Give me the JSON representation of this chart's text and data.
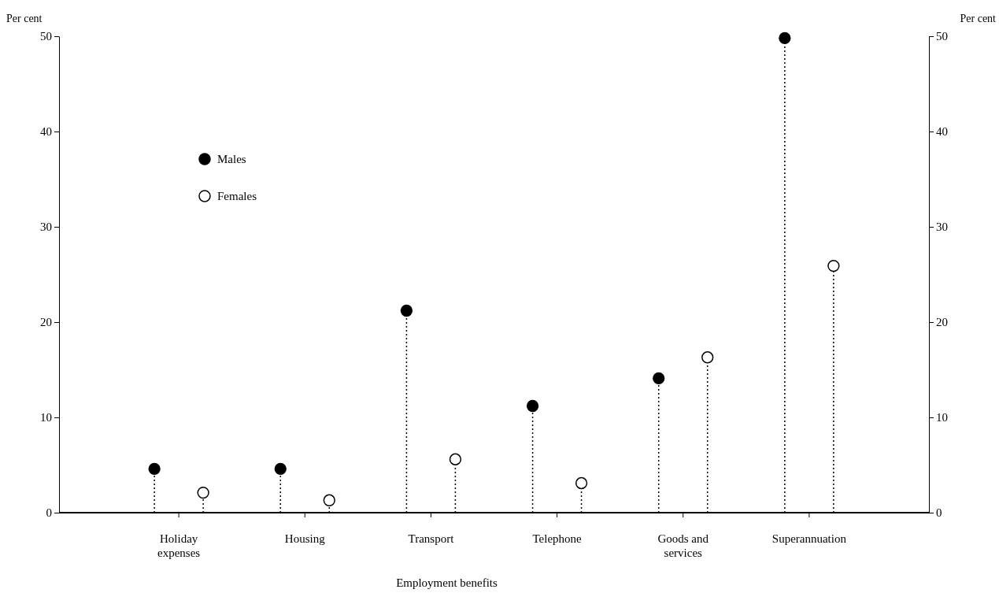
{
  "chart_data": {
    "type": "lollipop",
    "xlabel": "Employment benefits",
    "ylabel": "Per cent",
    "y2label": "Per cent",
    "categories": [
      "Holiday expenses",
      "Housing",
      "Transport",
      "Telephone",
      "Goods and services",
      "Superannuation"
    ],
    "series": [
      {
        "name": "Males",
        "color": "#000000",
        "values": [
          4.6,
          4.6,
          21.2,
          11.2,
          14.1,
          49.8
        ]
      },
      {
        "name": "Females",
        "color": "#ffffff",
        "values": [
          2.1,
          1.3,
          5.6,
          3.1,
          16.3,
          25.9
        ]
      }
    ],
    "ylim": [
      0,
      50
    ],
    "yticks": [
      0,
      10,
      20,
      30,
      40,
      50
    ],
    "y2lim": [
      0,
      50
    ],
    "y2ticks": [
      0,
      10,
      20,
      30,
      40,
      50
    ],
    "grid": false,
    "legend": "top left",
    "marker": "circle",
    "line_style": "dotted"
  }
}
